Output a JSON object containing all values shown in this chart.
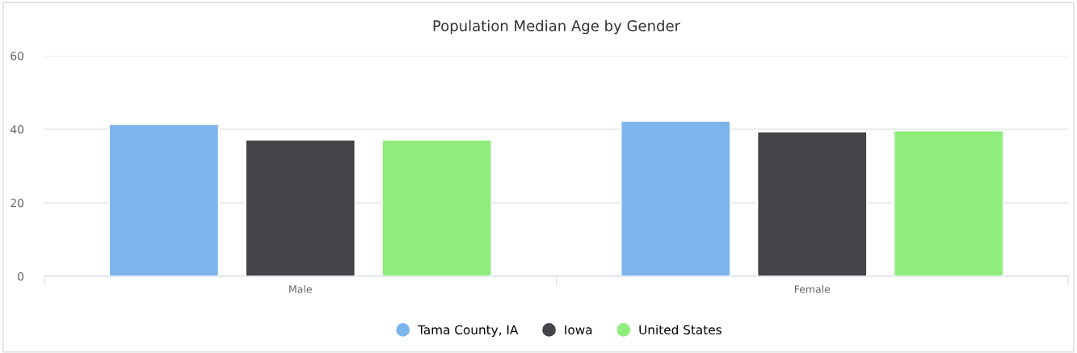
{
  "chart_data": {
    "type": "bar",
    "title": "Population Median Age by Gender",
    "categories": [
      "Male",
      "Female"
    ],
    "series": [
      {
        "name": "Tama County, IA",
        "color": "#7cb5ec",
        "values": [
          41.3,
          42.2
        ]
      },
      {
        "name": "Iowa",
        "color": "#434348",
        "values": [
          37.1,
          39.3
        ]
      },
      {
        "name": "United States",
        "color": "#90ed7d",
        "values": [
          37.1,
          39.6
        ]
      }
    ],
    "ylim": [
      0,
      60
    ],
    "yticks": [
      0,
      20,
      40,
      60
    ],
    "grid": "y",
    "legend": "bottom"
  }
}
